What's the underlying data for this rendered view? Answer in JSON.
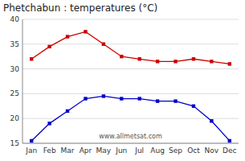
{
  "chart_data": {
    "type": "line",
    "title": "Phetchabun : temperatures (°C)",
    "annotation": "www.allmetsat.com",
    "categories": [
      "Jan",
      "Feb",
      "Mar",
      "Apr",
      "May",
      "Jun",
      "Jul",
      "Aug",
      "Sep",
      "Oct",
      "Nov",
      "Dec"
    ],
    "series": [
      {
        "color": "#cc0000",
        "marker": "square",
        "values": [
          32.0,
          34.5,
          36.5,
          37.5,
          35.0,
          32.5,
          32.0,
          31.5,
          31.5,
          32.0,
          31.5,
          31.0
        ]
      },
      {
        "color": "#0000cc",
        "marker": "square",
        "values": [
          15.5,
          19.0,
          21.5,
          24.0,
          24.5,
          24.0,
          24.0,
          23.5,
          23.5,
          22.5,
          19.5,
          15.5
        ]
      }
    ],
    "ylim": [
      15,
      40
    ],
    "yticks": [
      15,
      20,
      25,
      30,
      35,
      40
    ],
    "grid": true
  }
}
